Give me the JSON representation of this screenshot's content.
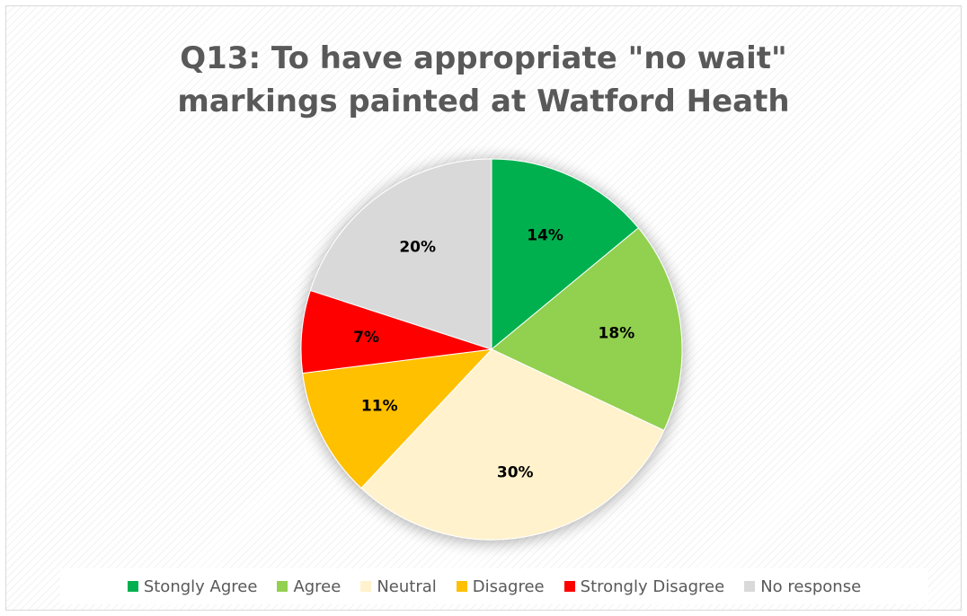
{
  "chart_data": {
    "type": "pie",
    "title_lines": [
      "Q13: To have appropriate \"no wait\"",
      "markings painted at Watford Heath"
    ],
    "categories": [
      "Stongly Agree",
      "Agree",
      "Neutral",
      "Disagree",
      "Strongly Disagree",
      "No response"
    ],
    "values": [
      14,
      18,
      30,
      11,
      7,
      20
    ],
    "data_labels": [
      "14%",
      "18%",
      "30%",
      "11%",
      "7%",
      "20%"
    ],
    "colors": [
      "#00b050",
      "#92d050",
      "#fff2cc",
      "#ffc000",
      "#ff0000",
      "#d9d9d9"
    ],
    "legend_position": "bottom"
  }
}
